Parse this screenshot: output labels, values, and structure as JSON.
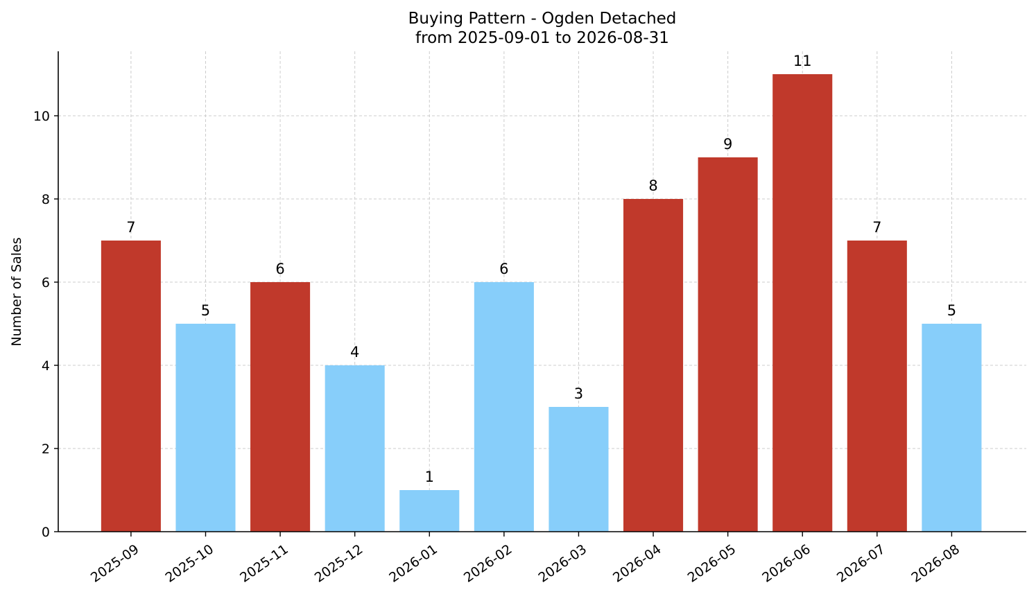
{
  "chart_data": {
    "type": "bar",
    "title": "Buying Pattern - Ogden Detached",
    "subtitle": "from 2025-09-01 to 2026-08-31",
    "xlabel": "",
    "ylabel": "Number of Sales",
    "categories": [
      "2025-09",
      "2025-10",
      "2025-11",
      "2025-12",
      "2026-01",
      "2026-02",
      "2026-03",
      "2026-04",
      "2026-05",
      "2026-06",
      "2026-07",
      "2026-08"
    ],
    "values": [
      7,
      5,
      6,
      4,
      1,
      6,
      3,
      8,
      9,
      11,
      7,
      5
    ],
    "bar_colors": [
      "#c0392b",
      "#87cefa",
      "#c0392b",
      "#87cefa",
      "#87cefa",
      "#87cefa",
      "#87cefa",
      "#c0392b",
      "#c0392b",
      "#c0392b",
      "#c0392b",
      "#87cefa"
    ],
    "ylim": [
      0,
      11.55
    ],
    "yticks": [
      0,
      2,
      4,
      6,
      8,
      10
    ],
    "grid": true,
    "data_labels": true
  }
}
